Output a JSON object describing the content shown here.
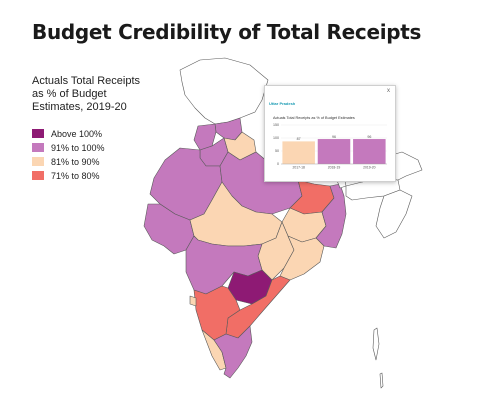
{
  "title": "Budget Credibility of Total Receipts",
  "legend": {
    "title": "Actuals Total Receipts as % of Budget Estimates, 2019-20",
    "items": [
      {
        "label": "Above 100%",
        "color": "#8e1a74"
      },
      {
        "label": "91% to 100%",
        "color": "#c479bd"
      },
      {
        "label": "81% to 90%",
        "color": "#fbd6b3"
      },
      {
        "label": "71% to 80%",
        "color": "#f16e66"
      }
    ]
  },
  "map": {
    "states": [
      {
        "name": "jammu-kashmir",
        "category": "none",
        "color": "#ffffff"
      },
      {
        "name": "himachal-pradesh",
        "category": "91% to 100%",
        "color": "#c479bd"
      },
      {
        "name": "punjab",
        "category": "91% to 100%",
        "color": "#c479bd"
      },
      {
        "name": "uttarakhand",
        "category": "81% to 90%",
        "color": "#fbd6b3"
      },
      {
        "name": "haryana",
        "category": "91% to 100%",
        "color": "#c479bd"
      },
      {
        "name": "rajasthan",
        "category": "91% to 100%",
        "color": "#c479bd"
      },
      {
        "name": "uttar-pradesh",
        "category": "91% to 100%",
        "color": "#c479bd"
      },
      {
        "name": "bihar",
        "category": "71% to 80%",
        "color": "#f16e66"
      },
      {
        "name": "gujarat",
        "category": "91% to 100%",
        "color": "#c479bd"
      },
      {
        "name": "madhya-pradesh",
        "category": "81% to 90%",
        "color": "#fbd6b3"
      },
      {
        "name": "jharkhand",
        "category": "81% to 90%",
        "color": "#fbd6b3"
      },
      {
        "name": "west-bengal",
        "category": "91% to 100%",
        "color": "#c479bd"
      },
      {
        "name": "chhattisgarh",
        "category": "81% to 90%",
        "color": "#fbd6b3"
      },
      {
        "name": "odisha",
        "category": "81% to 90%",
        "color": "#fbd6b3"
      },
      {
        "name": "maharashtra",
        "category": "91% to 100%",
        "color": "#c479bd"
      },
      {
        "name": "telangana",
        "category": "Above 100%",
        "color": "#8e1a74"
      },
      {
        "name": "andhra-pradesh",
        "category": "71% to 80%",
        "color": "#f16e66"
      },
      {
        "name": "karnataka",
        "category": "71% to 80%",
        "color": "#f16e66"
      },
      {
        "name": "goa",
        "category": "81% to 90%",
        "color": "#fbd6b3"
      },
      {
        "name": "kerala",
        "category": "81% to 90%",
        "color": "#fbd6b3"
      },
      {
        "name": "tamil-nadu",
        "category": "91% to 100%",
        "color": "#c479bd"
      },
      {
        "name": "sikkim",
        "category": "none",
        "color": "#ffffff"
      },
      {
        "name": "assam",
        "category": "none",
        "color": "#ffffff"
      },
      {
        "name": "arunachal-pradesh",
        "category": "none",
        "color": "#ffffff"
      },
      {
        "name": "north-east-states",
        "category": "none",
        "color": "#ffffff"
      },
      {
        "name": "andaman-nicobar",
        "category": "none",
        "color": "#ffffff"
      }
    ]
  },
  "popup": {
    "state": "Uttar Pradesh",
    "close": "x",
    "chart_title": "Actuals Total Receipts as % of Budget Estimates",
    "bar_color_1": "#fbd6b3",
    "bar_color_2": "#c479bd"
  },
  "chart_data": {
    "type": "bar",
    "title": "Actuals Total Receipts as % of Budget Estimates",
    "categories": [
      "2017-18",
      "2018-19",
      "2019-20"
    ],
    "values": [
      87,
      96,
      96
    ],
    "ylim": [
      0,
      150
    ],
    "yticks": [
      0,
      50,
      100,
      150
    ],
    "bar_colors": [
      "#fbd6b3",
      "#c479bd",
      "#c479bd"
    ]
  }
}
